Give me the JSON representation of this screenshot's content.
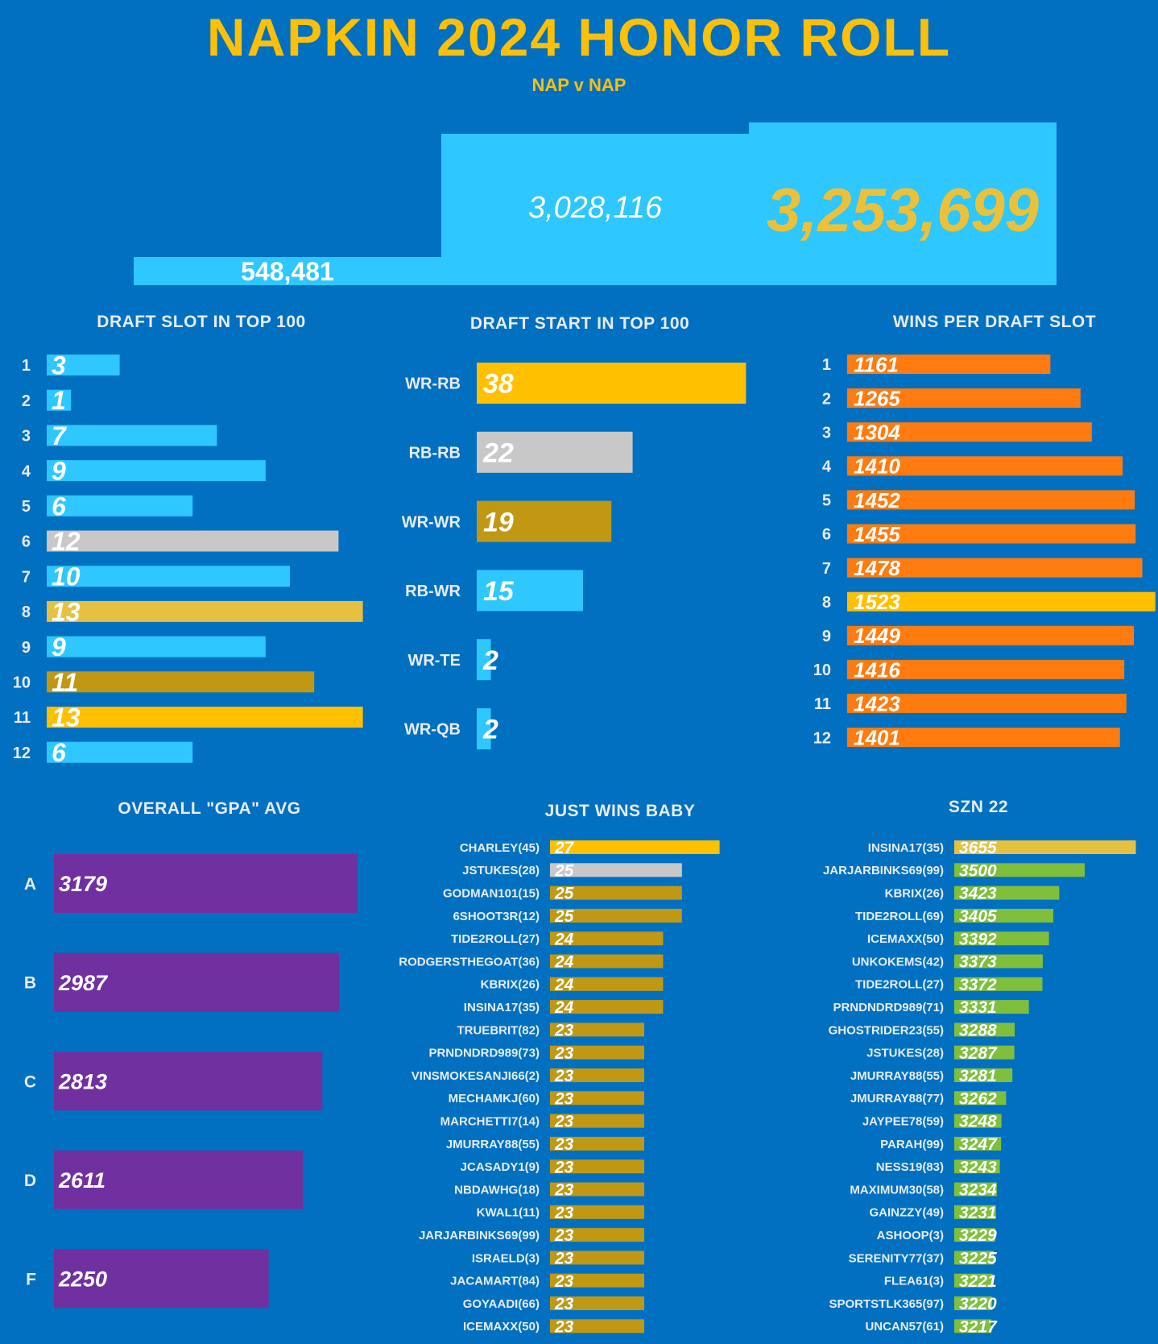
{
  "header": {
    "title": "NAPKIN 2024 HONOR ROLL",
    "subtitle": "NAP v NAP"
  },
  "chart_data": [
    {
      "type": "bar",
      "title": "",
      "values": [
        548481,
        3028116,
        3253699
      ],
      "labels": [
        "548,481",
        "3,028,116",
        "3,253,699"
      ],
      "colors": {
        "bar": "#2ec7ff",
        "highlight_text": "#ecc13a"
      }
    },
    {
      "type": "bar",
      "orientation": "horizontal",
      "title": "DRAFT SLOT IN TOP 100",
      "categories": [
        "1",
        "2",
        "3",
        "4",
        "5",
        "6",
        "7",
        "8",
        "9",
        "10",
        "11",
        "12"
      ],
      "values": [
        3,
        1,
        7,
        9,
        6,
        12,
        10,
        13,
        9,
        11,
        13,
        6
      ],
      "colors": [
        "#2ec7ff",
        "#2ec7ff",
        "#2ec7ff",
        "#2ec7ff",
        "#2ec7ff",
        "#c8c8c8",
        "#2ec7ff",
        "#e6c040",
        "#2ec7ff",
        "#c09814",
        "#ffc000",
        "#2ec7ff"
      ]
    },
    {
      "type": "bar",
      "orientation": "horizontal",
      "title": "DRAFT START IN TOP 100",
      "categories": [
        "WR-RB",
        "RB-RB",
        "WR-WR",
        "RB-WR",
        "WR-TE",
        "WR-QB"
      ],
      "values": [
        38,
        22,
        19,
        15,
        2,
        2
      ],
      "colors": [
        "#ffc000",
        "#c8c8c8",
        "#c09814",
        "#2ec7ff",
        "#2ec7ff",
        "#2ec7ff"
      ]
    },
    {
      "type": "bar",
      "orientation": "horizontal",
      "title": "WINS PER DRAFT SLOT",
      "categories": [
        "1",
        "2",
        "3",
        "4",
        "5",
        "6",
        "7",
        "8",
        "9",
        "10",
        "11",
        "12"
      ],
      "values": [
        1161,
        1265,
        1304,
        1410,
        1452,
        1455,
        1478,
        1523,
        1449,
        1416,
        1423,
        1401
      ],
      "colors": [
        "#ff7b0f",
        "#ff7b0f",
        "#ff7b0f",
        "#ff7b0f",
        "#ff7b0f",
        "#ff7b0f",
        "#ff7b0f",
        "#ffc000",
        "#ff7b0f",
        "#ff7b0f",
        "#ff7b0f",
        "#ff7b0f"
      ]
    },
    {
      "type": "bar",
      "orientation": "horizontal",
      "title": "OVERALL \"GPA\" AVG",
      "categories": [
        "A",
        "B",
        "C",
        "D",
        "F"
      ],
      "values": [
        3179,
        2987,
        2813,
        2611,
        2250
      ],
      "colors": [
        "#7030a0",
        "#7030a0",
        "#7030a0",
        "#7030a0",
        "#7030a0"
      ]
    },
    {
      "type": "bar",
      "orientation": "horizontal",
      "title": "JUST WINS BABY",
      "categories": [
        "CHARLEY(45)",
        "JSTUKES(28)",
        "GODMAN101(15)",
        "6SHOOT3R(12)",
        "TIDE2ROLL(27)",
        "RODGERSTHEGOAT(36)",
        "KBRIX(26)",
        "INSINA17(35)",
        "TRUEBRIT(82)",
        "PRNDNDRD989(73)",
        "VINSMOKESANJI66(2)",
        "MECHAMKJ(60)",
        "MARCHETTI7(14)",
        "JMURRAY88(55)",
        "JCASADY1(9)",
        "NBDAWHG(18)",
        "KWAL1(11)",
        "JARJARBINKS69(99)",
        "ISRAELD(3)",
        "JACAMART(84)",
        "GOYAADI(66)",
        "ICEMAXX(50)"
      ],
      "values": [
        27,
        25,
        25,
        25,
        24,
        24,
        24,
        24,
        23,
        23,
        23,
        23,
        23,
        23,
        23,
        23,
        23,
        23,
        23,
        23,
        23,
        23
      ],
      "colors": [
        "#ffc000",
        "#c8c8c8",
        "#c09814",
        "#c09814",
        "#c09814",
        "#c09814",
        "#c09814",
        "#c09814",
        "#c09814",
        "#c09814",
        "#c09814",
        "#c09814",
        "#c09814",
        "#c09814",
        "#c09814",
        "#c09814",
        "#c09814",
        "#c09814",
        "#c09814",
        "#c09814",
        "#c09814",
        "#c09814"
      ]
    },
    {
      "type": "bar",
      "orientation": "horizontal",
      "title": "SZN 22",
      "categories": [
        "INSINA17(35)",
        "JARJARBINKS69(99)",
        "KBRIX(26)",
        "TIDE2ROLL(69)",
        "ICEMAXX(50)",
        "UNKOKEMS(42)",
        "TIDE2ROLL(27)",
        "PRNDNDRD989(71)",
        "GHOSTRIDER23(55)",
        "JSTUKES(28)",
        "JMURRAY88(55)",
        "JMURRAY88(77)",
        "JAYPEE78(59)",
        "PARAH(99)",
        "NESS19(83)",
        "MAXIMUM30(58)",
        "GAINZZY(49)",
        "ASHOOP(3)",
        "SERENITY77(37)",
        "FLEA61(3)",
        "SPORTSTLK365(97)",
        "UNCAN57(61)"
      ],
      "values": [
        3655,
        3500,
        3423,
        3405,
        3392,
        3373,
        3372,
        3331,
        3288,
        3287,
        3281,
        3262,
        3248,
        3247,
        3243,
        3234,
        3231,
        3229,
        3225,
        3221,
        3220,
        3217
      ],
      "colors": [
        "#e6c040",
        "#7fbf3c",
        "#7fbf3c",
        "#7fbf3c",
        "#7fbf3c",
        "#7fbf3c",
        "#7fbf3c",
        "#7fbf3c",
        "#7fbf3c",
        "#7fbf3c",
        "#7fbf3c",
        "#7fbf3c",
        "#7fbf3c",
        "#7fbf3c",
        "#7fbf3c",
        "#7fbf3c",
        "#7fbf3c",
        "#7fbf3c",
        "#7fbf3c",
        "#7fbf3c",
        "#7fbf3c",
        "#7fbf3c"
      ]
    }
  ]
}
